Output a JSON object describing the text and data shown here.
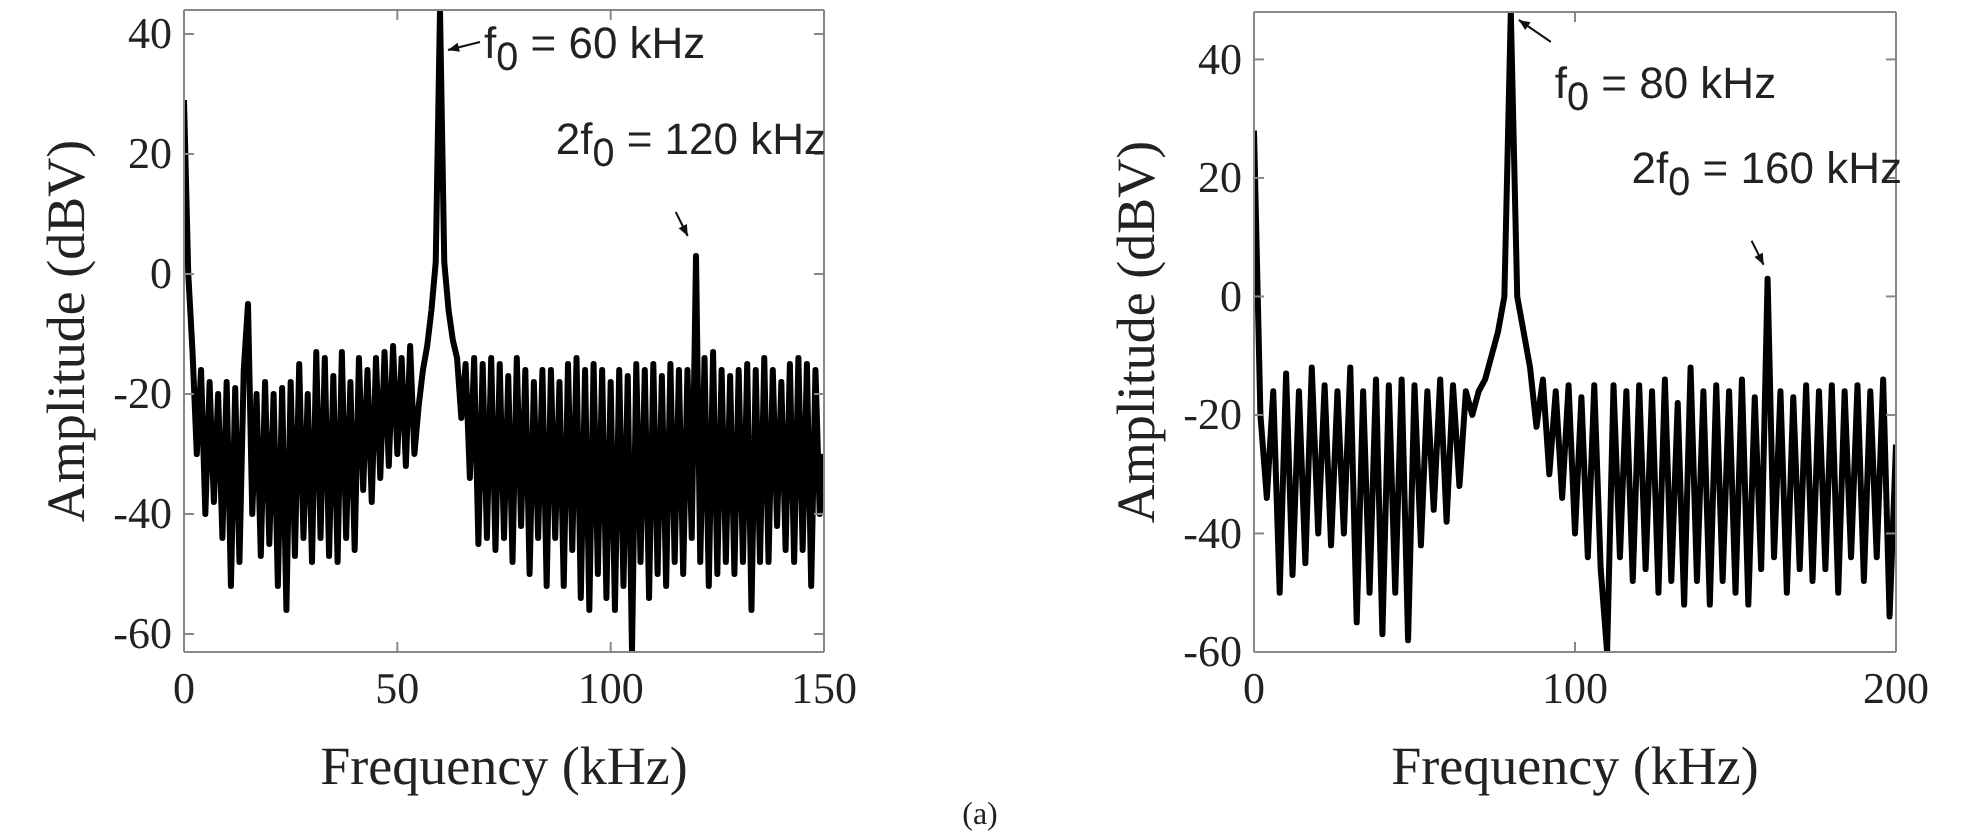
{
  "chart_data": [
    {
      "type": "line",
      "xlabel": "Frequency (kHz)",
      "ylabel": "Amplitude (dBV)",
      "xlim": [
        0,
        150
      ],
      "xticks": [
        0,
        50,
        100,
        150
      ],
      "ylim": [
        -63,
        44
      ],
      "yticks": [
        -60,
        -40,
        -20,
        0,
        20,
        40
      ],
      "grid": false,
      "marker": "none",
      "line_style": "solid",
      "annotations": [
        {
          "text": "f$_{0}$ = 60 kHz",
          "x": 60,
          "y": 40
        },
        {
          "text": "2f$_{0}$ = 120 kHz",
          "x": 119,
          "y": 5
        },
        "(a)"
      ],
      "series": [
        {
          "color": "#000000",
          "x": [
            0,
            1,
            2,
            3,
            4,
            5,
            6,
            7,
            8,
            9,
            10,
            11,
            12,
            13,
            14,
            15,
            16,
            17,
            18,
            19,
            20,
            21,
            22,
            23,
            24,
            25,
            26,
            27,
            28,
            29,
            30,
            31,
            32,
            33,
            34,
            35,
            36,
            37,
            38,
            39,
            40,
            41,
            42,
            43,
            44,
            45,
            46,
            47,
            48,
            49,
            50,
            51,
            52,
            53,
            54,
            55,
            56,
            57,
            58,
            59,
            60,
            61,
            62,
            63,
            64,
            65,
            66,
            67,
            68,
            69,
            70,
            71,
            72,
            73,
            74,
            75,
            76,
            77,
            78,
            79,
            80,
            81,
            82,
            83,
            84,
            85,
            86,
            87,
            88,
            89,
            90,
            91,
            92,
            93,
            94,
            95,
            96,
            97,
            98,
            99,
            100,
            101,
            102,
            103,
            104,
            105,
            106,
            107,
            108,
            109,
            110,
            111,
            112,
            113,
            114,
            115,
            116,
            117,
            118,
            119,
            120,
            121,
            122,
            123,
            124,
            125,
            126,
            127,
            128,
            129,
            130,
            131,
            132,
            133,
            134,
            135,
            136,
            137,
            138,
            139,
            140,
            141,
            142,
            143,
            144,
            145,
            146,
            147,
            148,
            149,
            150
          ],
          "values": [
            29,
            0,
            -13,
            -30,
            -16,
            -40,
            -18,
            -38,
            -20,
            -44,
            -18,
            -52,
            -19,
            -48,
            -16,
            -5,
            -40,
            -20,
            -47,
            -18,
            -45,
            -20,
            -52,
            -19,
            -56,
            -18,
            -47,
            -15,
            -44,
            -20,
            -48,
            -13,
            -44,
            -14,
            -47,
            -17,
            -48,
            -13,
            -44,
            -18,
            -46,
            -14,
            -36,
            -16,
            -38,
            -14,
            -34,
            -13,
            -32,
            -12,
            -30,
            -14,
            -32,
            -12,
            -30,
            -22,
            -16,
            -12,
            -6,
            2,
            44,
            2,
            -6,
            -11,
            -14,
            -24,
            -15,
            -34,
            -14,
            -45,
            -15,
            -44,
            -14,
            -46,
            -15,
            -44,
            -17,
            -48,
            -14,
            -42,
            -16,
            -50,
            -18,
            -44,
            -16,
            -52,
            -16,
            -44,
            -18,
            -52,
            -15,
            -46,
            -14,
            -54,
            -16,
            -56,
            -15,
            -50,
            -16,
            -54,
            -18,
            -56,
            -16,
            -52,
            -17,
            -63,
            -15,
            -48,
            -16,
            -54,
            -15,
            -50,
            -17,
            -52,
            -15,
            -48,
            -16,
            -50,
            -16,
            -44,
            3,
            -48,
            -14,
            -52,
            -13,
            -50,
            -16,
            -48,
            -17,
            -50,
            -16,
            -48,
            -15,
            -56,
            -16,
            -48,
            -14,
            -48,
            -16,
            -42,
            -18,
            -46,
            -15,
            -48,
            -14,
            -46,
            -15,
            -52,
            -16,
            -40,
            -30
          ]
        }
      ]
    },
    {
      "type": "line",
      "xlabel": "Frequency (kHz)",
      "ylabel": "Amplitude (dBV)",
      "xlim": [
        0,
        200
      ],
      "xticks": [
        0,
        100,
        200
      ],
      "ylim": [
        -60,
        48
      ],
      "yticks": [
        -60,
        -40,
        -20,
        0,
        20,
        40
      ],
      "grid": false,
      "marker": "none",
      "line_style": "solid",
      "annotations": [
        {
          "text": "f$_{0}$ = 80 kHz",
          "x": 80,
          "y": 47
        },
        {
          "text": "2f$_{0}$ = 160 kHz",
          "x": 160,
          "y": 4
        }
      ],
      "series": [
        {
          "color": "#000000",
          "x": [
            0,
            2,
            4,
            6,
            8,
            10,
            12,
            14,
            16,
            18,
            20,
            22,
            24,
            26,
            28,
            30,
            32,
            34,
            36,
            38,
            40,
            42,
            44,
            46,
            48,
            50,
            52,
            54,
            56,
            58,
            60,
            62,
            64,
            66,
            68,
            70,
            72,
            74,
            76,
            78,
            80,
            82,
            84,
            86,
            88,
            90,
            92,
            94,
            96,
            98,
            100,
            102,
            104,
            106,
            108,
            110,
            112,
            114,
            116,
            118,
            120,
            122,
            124,
            126,
            128,
            130,
            132,
            134,
            136,
            138,
            140,
            142,
            144,
            146,
            148,
            150,
            152,
            154,
            156,
            158,
            160,
            162,
            164,
            166,
            168,
            170,
            172,
            174,
            176,
            178,
            180,
            182,
            184,
            186,
            188,
            190,
            192,
            194,
            196,
            198,
            200
          ],
          "values": [
            28,
            -20,
            -34,
            -16,
            -50,
            -13,
            -47,
            -16,
            -45,
            -12,
            -40,
            -15,
            -42,
            -16,
            -40,
            -12,
            -55,
            -16,
            -50,
            -14,
            -57,
            -15,
            -50,
            -14,
            -58,
            -15,
            -42,
            -16,
            -36,
            -14,
            -38,
            -15,
            -32,
            -16,
            -20,
            -16,
            -14,
            -10,
            -6,
            0,
            48,
            0,
            -6,
            -12,
            -22,
            -14,
            -30,
            -16,
            -34,
            -15,
            -40,
            -17,
            -44,
            -15,
            -46,
            -60,
            -15,
            -44,
            -16,
            -48,
            -15,
            -46,
            -16,
            -50,
            -14,
            -48,
            -18,
            -52,
            -12,
            -48,
            -16,
            -52,
            -15,
            -48,
            -16,
            -50,
            -14,
            -52,
            -17,
            -46,
            3,
            -44,
            -16,
            -50,
            -17,
            -46,
            -15,
            -48,
            -16,
            -46,
            -15,
            -50,
            -16,
            -44,
            -15,
            -48,
            -16,
            -44,
            -14,
            -54,
            -25
          ]
        }
      ]
    }
  ]
}
